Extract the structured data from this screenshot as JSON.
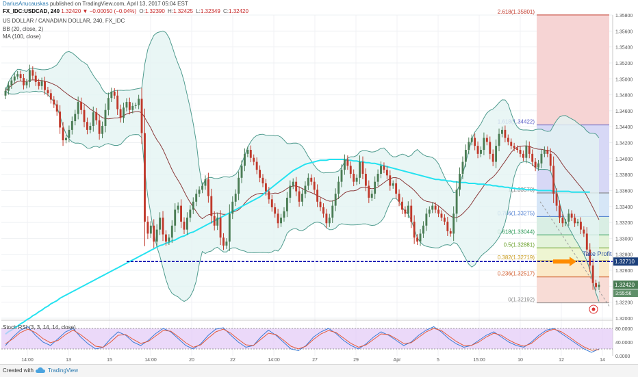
{
  "header": {
    "author": "DariusAnucauskas",
    "published": "published on TradingView.com, April 13, 2017 05:04 EST",
    "symbol_line": "FX_IDC:USDCAD, 240",
    "last": "1.32420",
    "change": "−0.00050 (−0.04%)",
    "ohlc": [
      {
        "label": "O:",
        "value": "1.32390"
      },
      {
        "label": "H:",
        "value": "1.32425"
      },
      {
        "label": "L:",
        "value": "1.32349"
      },
      {
        "label": "C:",
        "value": "1.32420"
      }
    ],
    "title": "US DOLLAR / CANADIAN DOLLAR, 240, FX_IDC",
    "indicator1": "BB (20, close, 2)",
    "indicator2": "MA (100, close)",
    "stoch_label": "Stoch RSI (3, 3, 14, 14, close)"
  },
  "footer": {
    "created_with": "Created with",
    "brand": "TradingView"
  },
  "colors": {
    "up": "#4a7c54",
    "down": "#c0392b",
    "ma": "#25e2f0",
    "bb_fill": "#e3f4f2",
    "bb_line": "#4f9b8e",
    "bb_mid": "#8b3a3a",
    "k": "#3a7bd5",
    "d": "#e35b3b",
    "band": "#e3c9f7",
    "hline": "#0000aa",
    "arrow": "#ff8c00",
    "price_box": "#1a3e7a"
  },
  "chart_data": [
    {
      "type": "candlestick",
      "title": "US DOLLAR / CANADIAN DOLLAR, 240, FX_IDC",
      "x_ticks": [
        "14:00",
        "13",
        "15",
        "14:00",
        "20",
        "22",
        "14:00",
        "27",
        "29",
        "Apr",
        "5",
        "15:00",
        "10",
        "12",
        "14"
      ],
      "y_ticks": [
        "1.32000",
        "1.32200",
        "1.32400",
        "1.32600",
        "1.32800",
        "1.33000",
        "1.33200",
        "1.33400",
        "1.33600",
        "1.33800",
        "1.34000",
        "1.34200",
        "1.34400",
        "1.34600",
        "1.34800",
        "1.35000",
        "1.35200",
        "1.35400",
        "1.35600",
        "1.35800"
      ],
      "ylim": [
        1.32,
        1.358
      ],
      "close": [
        1.3485,
        1.3492,
        1.3498,
        1.3503,
        1.3506,
        1.3501,
        1.3492,
        1.3496,
        1.3511,
        1.3504,
        1.3496,
        1.3491,
        1.3497,
        1.3486,
        1.3482,
        1.3474,
        1.3468,
        1.3459,
        1.3439,
        1.3423,
        1.3426,
        1.3436,
        1.3447,
        1.3456,
        1.3471,
        1.3461,
        1.3446,
        1.3436,
        1.3441,
        1.3458,
        1.3448,
        1.3431,
        1.3441,
        1.3461,
        1.3476,
        1.3484,
        1.3479,
        1.3462,
        1.3451,
        1.3464,
        1.3471,
        1.3461,
        1.3466,
        1.3467,
        1.3475,
        1.3432,
        1.3321,
        1.3306,
        1.3316,
        1.3296,
        1.3311,
        1.3326,
        1.3305,
        1.3296,
        1.3301,
        1.3316,
        1.3336,
        1.3341,
        1.3321,
        1.3311,
        1.3326,
        1.3336,
        1.3346,
        1.3356,
        1.3361,
        1.3366,
        1.3374,
        1.3353,
        1.3328,
        1.3316,
        1.3326,
        1.3301,
        1.3291,
        1.3296,
        1.3331,
        1.3346,
        1.3356,
        1.3376,
        1.3391,
        1.3406,
        1.3411,
        1.3401,
        1.3396,
        1.3386,
        1.3376,
        1.3369,
        1.3359,
        1.3349,
        1.3339,
        1.3331,
        1.3319,
        1.3326,
        1.3334,
        1.3351,
        1.3366,
        1.3371,
        1.3359,
        1.3346,
        1.3356,
        1.3366,
        1.3376,
        1.3371,
        1.3361,
        1.3346,
        1.3339,
        1.3331,
        1.3319,
        1.3326,
        1.3341,
        1.3356,
        1.3371,
        1.3386,
        1.3399,
        1.3391,
        1.3381,
        1.3371,
        1.3376,
        1.3396,
        1.3381,
        1.3366,
        1.3351,
        1.3356,
        1.3371,
        1.3381,
        1.3391,
        1.3386,
        1.3379,
        1.3366,
        1.3369,
        1.3356,
        1.3346,
        1.3336,
        1.3331,
        1.3341,
        1.3321,
        1.3301,
        1.3296,
        1.3306,
        1.3316,
        1.3331,
        1.3336,
        1.3341,
        1.3336,
        1.3331,
        1.3326,
        1.3321,
        1.3309,
        1.3306,
        1.3331,
        1.3361,
        1.3381,
        1.3396,
        1.3411,
        1.3421,
        1.3426,
        1.3416,
        1.3406,
        1.3411,
        1.3426,
        1.3421,
        1.3406,
        1.3396,
        1.3416,
        1.3431,
        1.3436,
        1.3426,
        1.3421,
        1.3416,
        1.3413,
        1.3411,
        1.3406,
        1.3401,
        1.3416,
        1.3406,
        1.3396,
        1.3389,
        1.3394,
        1.3406,
        1.3411,
        1.3406,
        1.3391,
        1.3356,
        1.3341,
        1.3326,
        1.3319,
        1.3321,
        1.3331,
        1.3326,
        1.3319,
        1.3321,
        1.3311,
        1.3306,
        1.3286,
        1.3266,
        1.3244,
        1.3239,
        1.3242
      ],
      "ma100": [
        1.318,
        1.3183,
        1.3185,
        1.3188,
        1.319,
        1.3193,
        1.3195,
        1.3198,
        1.32,
        1.3203,
        1.3205,
        1.3208,
        1.321,
        1.3213,
        1.3215,
        1.3218,
        1.322,
        1.3222,
        1.3225,
        1.3227,
        1.3229,
        1.3231,
        1.3233,
        1.3235,
        1.3237,
        1.3239,
        1.3241,
        1.3243,
        1.3245,
        1.3247,
        1.3249,
        1.3251,
        1.3253,
        1.3255,
        1.3257,
        1.3259,
        1.3261,
        1.3263,
        1.3265,
        1.3267,
        1.3269,
        1.3271,
        1.3273,
        1.3275,
        1.3277,
        1.3279,
        1.3281,
        1.3283,
        1.3285,
        1.3287,
        1.3289,
        1.3291,
        1.3292,
        1.3294,
        1.3295,
        1.3297,
        1.3298,
        1.33,
        1.3302,
        1.3303,
        1.3305,
        1.3307,
        1.3308,
        1.331,
        1.3312,
        1.3314,
        1.3316,
        1.3318,
        1.332,
        1.3322,
        1.3324,
        1.3326,
        1.3328,
        1.333,
        1.3332,
        1.3334,
        1.3336,
        1.3338,
        1.334,
        1.3342,
        1.3344,
        1.3346,
        1.3348,
        1.335,
        1.3352,
        1.3355,
        1.3358,
        1.3361,
        1.3364,
        1.3367,
        1.337,
        1.3373,
        1.3376,
        1.3379,
        1.3382,
        1.3385,
        1.3387,
        1.3389,
        1.3391,
        1.3393,
        1.3394,
        1.3395,
        1.3396,
        1.3397,
        1.3398,
        1.3398,
        1.3398,
        1.3399,
        1.3399,
        1.3399,
        1.3399,
        1.3399,
        1.3399,
        1.3398,
        1.3398,
        1.3397,
        1.3397,
        1.3396,
        1.3396,
        1.3395,
        1.3395,
        1.3394,
        1.3394,
        1.3393,
        1.3392,
        1.3391,
        1.339,
        1.3389,
        1.3388,
        1.3387,
        1.3386,
        1.3385,
        1.3384,
        1.3383,
        1.3382,
        1.3381,
        1.338,
        1.3379,
        1.3378,
        1.3377,
        1.3376,
        1.3375,
        1.3374,
        1.3374,
        1.3373,
        1.3373,
        1.3372,
        1.3372,
        1.3371,
        1.3371,
        1.337,
        1.337,
        1.337,
        1.3369,
        1.3369,
        1.3369,
        1.3368,
        1.3368,
        1.3368,
        1.3367,
        1.3367,
        1.3366,
        1.3366,
        1.3365,
        1.3365,
        1.3364,
        1.3364,
        1.3363,
        1.3363,
        1.3362,
        1.3362,
        1.3362,
        1.3361,
        1.3361,
        1.3361,
        1.3361,
        1.336,
        1.336,
        1.336,
        1.336,
        1.336,
        1.3359,
        1.3359,
        1.3359,
        1.3359,
        1.3359,
        1.3359,
        1.3358,
        1.3358,
        1.3358,
        1.3358,
        1.3358,
        1.3358,
        1.3358
      ],
      "fib_labels": [
        {
          "text": "2.618(1.35801)",
          "value": 1.35801
        },
        {
          "text": "1.618(1.34422)",
          "value": 1.34422
        },
        {
          "text": "1(1.33570)",
          "value": 1.3357
        },
        {
          "text": "0.786(1.33275)",
          "value": 1.33275
        },
        {
          "text": "0.618(1.33044)",
          "value": 1.33044
        },
        {
          "text": "0.5(1.32881)",
          "value": 1.32881
        },
        {
          "text": "0.382(1.32719)",
          "value": 1.32719
        },
        {
          "text": "0.236(1.32517)",
          "value": 1.32517
        },
        {
          "text": "0(1.32192)",
          "value": 1.32192
        }
      ],
      "horizontal_line": {
        "value": 1.3271,
        "label": "1.32710"
      },
      "annotation": "Take Profit",
      "last_price": {
        "label": "1.32420",
        "value": 1.3242
      },
      "countdown": "3:55:56"
    },
    {
      "type": "line",
      "title": "Stoch RSI (3, 3, 14, 14, close)",
      "y_ticks": [
        "80.0000",
        "40.0000",
        "0.0000"
      ],
      "ylim": [
        0,
        100
      ],
      "band": [
        20,
        80
      ],
      "series": [
        {
          "name": "K",
          "values": [
            30,
            55,
            75,
            85,
            60,
            40,
            30,
            50,
            70,
            80,
            55,
            35,
            20,
            25,
            50,
            70,
            60,
            40,
            30,
            45,
            65,
            80,
            70,
            50,
            30,
            20,
            35,
            60,
            78,
            82,
            60,
            40,
            25,
            30,
            55,
            75,
            60,
            40,
            20,
            15,
            30,
            55,
            70,
            80,
            65,
            45,
            30,
            20,
            35,
            55,
            70,
            60,
            45,
            30,
            40,
            60,
            75,
            85,
            70,
            50,
            35,
            25,
            30,
            45,
            60,
            70,
            55,
            40,
            30,
            25,
            40,
            60,
            75,
            80,
            65,
            50,
            35,
            20,
            10,
            20
          ]
        },
        {
          "name": "D",
          "values": [
            35,
            50,
            68,
            78,
            68,
            50,
            38,
            45,
            62,
            75,
            62,
            45,
            28,
            25,
            40,
            60,
            62,
            48,
            36,
            42,
            58,
            74,
            72,
            56,
            38,
            25,
            32,
            52,
            70,
            78,
            66,
            48,
            32,
            30,
            48,
            66,
            62,
            46,
            28,
            20,
            28,
            48,
            64,
            74,
            68,
            52,
            36,
            25,
            32,
            48,
            64,
            62,
            50,
            36,
            38,
            54,
            70,
            80,
            74,
            58,
            42,
            30,
            30,
            40,
            55,
            66,
            60,
            46,
            35,
            28,
            36,
            54,
            70,
            78,
            70,
            56,
            40,
            26,
            16,
            18
          ]
        }
      ]
    }
  ]
}
